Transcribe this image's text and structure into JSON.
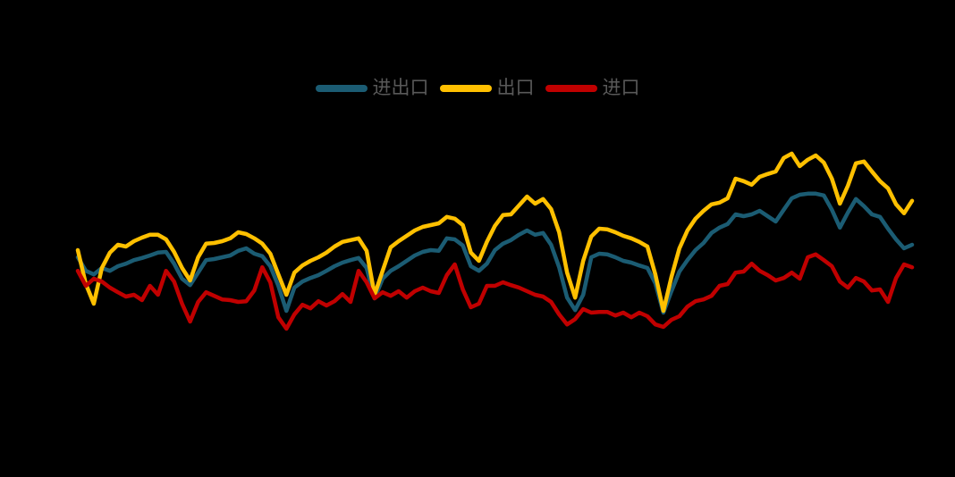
{
  "colors": {
    "background": "#000000",
    "legend_text": "#595959",
    "series_total": "#1B5C73",
    "series_export": "#FFC000",
    "series_import": "#C00000"
  },
  "legend": {
    "items": [
      {
        "label": "进出口",
        "color": "#1B5C73"
      },
      {
        "label": "出口",
        "color": "#FFC000"
      },
      {
        "label": "进口",
        "color": "#C00000"
      }
    ]
  },
  "chart_data": {
    "type": "line",
    "title": "",
    "xlabel": "",
    "ylabel": "",
    "axes_visible": false,
    "grid": false,
    "legend_position": "top-center",
    "x_unit": "month-index",
    "x_range": [
      1,
      105
    ],
    "ylim": [
      -25,
      35
    ],
    "series": [
      {
        "name": "进出口",
        "color": "#1B5C73",
        "values": [
          0.5,
          -3.3,
          -4.3,
          -2.5,
          -3.3,
          -2.0,
          -1.3,
          -0.3,
          0.3,
          1.0,
          1.8,
          2.0,
          -1.3,
          -5.5,
          -7.3,
          -3.8,
          -0.3,
          0.0,
          0.5,
          1.0,
          2.3,
          3.0,
          1.5,
          0.8,
          -2.0,
          -7.5,
          -14.5,
          -8.0,
          -6.3,
          -5.3,
          -4.5,
          -3.3,
          -2.0,
          -1.0,
          -0.3,
          0.3,
          -2.5,
          -11.0,
          -5.5,
          -3.3,
          -2.0,
          -0.5,
          1.0,
          2.0,
          2.5,
          2.3,
          5.8,
          5.5,
          3.8,
          -2.0,
          -3.3,
          -1.3,
          2.5,
          4.3,
          5.3,
          6.8,
          8.0,
          6.8,
          7.3,
          4.0,
          -2.3,
          -10.8,
          -14.3,
          -10.0,
          0.5,
          1.5,
          1.3,
          0.5,
          -0.5,
          -1.0,
          -1.8,
          -2.5,
          -6.8,
          -15.0,
          -9.0,
          -3.5,
          -0.3,
          2.5,
          4.5,
          7.3,
          8.8,
          9.8,
          12.5,
          12.0,
          12.5,
          13.5,
          12.0,
          10.5,
          13.8,
          17.0,
          18.0,
          18.3,
          18.3,
          17.8,
          13.8,
          8.8,
          13.0,
          16.8,
          14.8,
          12.5,
          11.8,
          8.5,
          5.5,
          3.0,
          4.0
        ]
      },
      {
        "name": "出口",
        "color": "#FFC000",
        "values": [
          2.5,
          -7.0,
          -12.5,
          -2.5,
          1.8,
          4.0,
          3.5,
          5.0,
          6.0,
          6.8,
          6.8,
          5.5,
          2.0,
          -2.5,
          -6.0,
          0.5,
          4.3,
          4.5,
          5.0,
          5.8,
          7.5,
          7.0,
          5.8,
          4.3,
          1.5,
          -4.3,
          -10.0,
          -3.8,
          -1.8,
          -0.5,
          0.5,
          1.8,
          3.5,
          4.8,
          5.3,
          5.8,
          2.3,
          -10.0,
          -3.3,
          3.3,
          5.0,
          6.5,
          8.0,
          9.0,
          9.5,
          10.0,
          11.8,
          11.3,
          9.5,
          1.8,
          -0.5,
          4.8,
          9.3,
          12.3,
          12.5,
          15.0,
          17.5,
          15.5,
          16.8,
          14.0,
          7.5,
          -3.8,
          -10.8,
          -0.5,
          6.3,
          8.5,
          8.3,
          7.5,
          6.5,
          5.8,
          4.8,
          3.5,
          -4.3,
          -14.5,
          -5.0,
          3.0,
          8.0,
          11.3,
          13.5,
          15.3,
          15.8,
          17.0,
          22.5,
          21.8,
          20.8,
          23.0,
          23.8,
          24.5,
          28.3,
          29.5,
          26.0,
          27.8,
          29.0,
          27.0,
          22.5,
          15.5,
          20.5,
          26.8,
          27.3,
          24.5,
          21.8,
          19.8,
          15.3,
          12.8,
          16.3
        ]
      },
      {
        "name": "进口",
        "color": "#C00000",
        "values": [
          -3.3,
          -7.5,
          -5.5,
          -6.3,
          -8.0,
          -9.3,
          -10.5,
          -10.0,
          -11.5,
          -7.5,
          -10.0,
          -3.3,
          -6.3,
          -12.5,
          -17.5,
          -12.0,
          -9.3,
          -10.3,
          -11.3,
          -11.5,
          -12.0,
          -11.8,
          -8.8,
          -2.3,
          -6.5,
          -16.3,
          -19.5,
          -15.5,
          -12.8,
          -13.8,
          -11.8,
          -13.0,
          -11.8,
          -9.8,
          -12.0,
          -3.3,
          -6.5,
          -11.0,
          -9.3,
          -10.3,
          -9.0,
          -10.8,
          -9.0,
          -8.0,
          -9.0,
          -9.5,
          -4.5,
          -1.5,
          -8.5,
          -13.5,
          -12.5,
          -7.5,
          -7.5,
          -6.5,
          -7.3,
          -8.0,
          -9.0,
          -10.0,
          -10.5,
          -12.0,
          -15.5,
          -18.3,
          -16.8,
          -14.0,
          -15.0,
          -14.8,
          -14.8,
          -15.8,
          -15.0,
          -16.3,
          -15.0,
          -16.0,
          -18.3,
          -19.0,
          -17.0,
          -16.0,
          -13.3,
          -11.8,
          -11.3,
          -10.3,
          -7.5,
          -7.0,
          -3.8,
          -3.5,
          -1.3,
          -3.3,
          -4.5,
          -6.0,
          -5.3,
          -3.8,
          -5.5,
          0.5,
          1.3,
          -0.3,
          -2.0,
          -6.3,
          -8.0,
          -5.3,
          -6.3,
          -8.8,
          -8.5,
          -12.0,
          -5.3,
          -1.5,
          -2.3
        ]
      }
    ]
  }
}
